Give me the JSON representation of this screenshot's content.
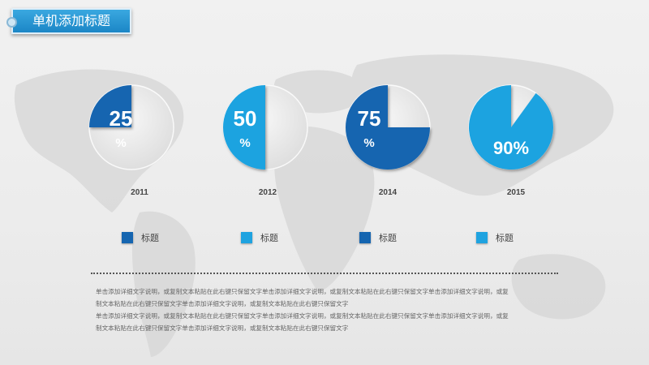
{
  "header": {
    "title": "单机添加标题"
  },
  "colors": {
    "dark": "#1565b0",
    "light": "#1fa3e0",
    "track": "#e9e9e9"
  },
  "chart_data": {
    "type": "pie",
    "categories": [
      "2011",
      "2012",
      "2014",
      "2015"
    ],
    "values": [
      25,
      50,
      75,
      90
    ],
    "value_labels": [
      "25",
      "50",
      "75",
      "90%"
    ],
    "unit_labels": [
      "%",
      "%",
      "%",
      ""
    ],
    "series_styles": [
      "dark",
      "light",
      "dark",
      "light"
    ]
  },
  "legend": [
    {
      "label": "标题",
      "color": "#1565b0"
    },
    {
      "label": "标题",
      "color": "#1fa3e0"
    },
    {
      "label": "标题",
      "color": "#1565b0"
    },
    {
      "label": "标题",
      "color": "#1fa3e0"
    }
  ],
  "body_lines": [
    "单击添加详细文字说明，或复制文本粘贴在此右键只保留文字单击添加详细文字说明，或复制文本粘贴在此右键只保留文字单击添加详细文字说明，或复",
    "制文本粘贴在此右键只保留文字单击添加详细文字说明，或复制文本粘贴在此右键只保留文字",
    "单击添加详细文字说明，或复制文本粘贴在此右键只保留文字单击添加详细文字说明，或复制文本粘贴在此右键只保留文字单击添加详细文字说明，或复",
    "制文本粘贴在此右键只保留文字单击添加详细文字说明，或复制文本粘贴在此右键只保留文字"
  ]
}
